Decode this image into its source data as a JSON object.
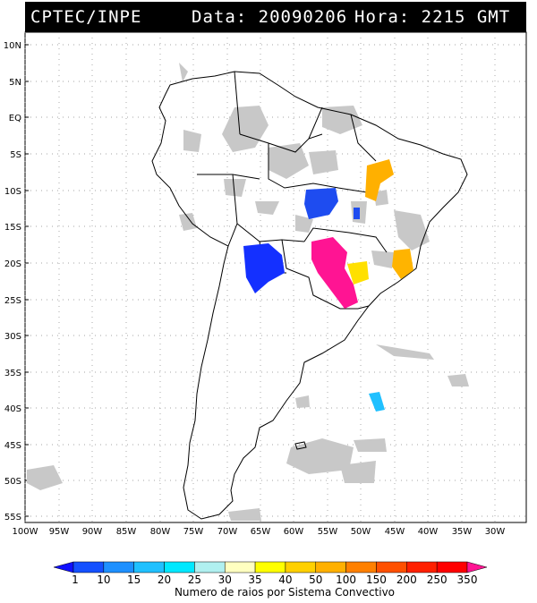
{
  "header": {
    "agency": "CPTEC/INPE",
    "date_label": "Data: 20090206",
    "time_label": "Hora: 2215 GMT"
  },
  "map": {
    "lat_labels": [
      "10N",
      "5N",
      "EQ",
      "5S",
      "10S",
      "15S",
      "20S",
      "25S",
      "30S",
      "35S",
      "40S",
      "45S",
      "50S",
      "55S"
    ],
    "lon_labels": [
      "100W",
      "95W",
      "90W",
      "85W",
      "80W",
      "75W",
      "70W",
      "65W",
      "60W",
      "55W",
      "50W",
      "45W",
      "40W",
      "35W",
      "30W"
    ],
    "cloud_color": "#c8c8c8",
    "coast_color": "#000000"
  },
  "storms": [
    {
      "id": "central-brazil-blue",
      "color": "#1e4cf0",
      "category": "10"
    },
    {
      "id": "mato-grosso-blue-small",
      "color": "#1e4cf0",
      "category": "10"
    },
    {
      "id": "paraguay-bolivia-blue",
      "color": "#1430ff",
      "category": "10"
    },
    {
      "id": "parana-pink",
      "color": "#ff1493",
      "category": "350"
    },
    {
      "id": "minas-yellow",
      "color": "#ffe000",
      "category": "40"
    },
    {
      "id": "bahia-orange",
      "color": "#ffb000",
      "category": "100"
    },
    {
      "id": "east-orange",
      "color": "#ffb400",
      "category": "100"
    },
    {
      "id": "atlantic-cyan",
      "color": "#20c0ff",
      "category": "20"
    }
  ],
  "colorbar": {
    "labels": [
      "1",
      "10",
      "15",
      "20",
      "25",
      "30",
      "35",
      "40",
      "50",
      "100",
      "150",
      "200",
      "250",
      "350"
    ],
    "colors": [
      "#1010ff",
      "#1450ff",
      "#1e90ff",
      "#20c0ff",
      "#00e8ff",
      "#b0f0f0",
      "#ffffc0",
      "#ffff00",
      "#ffd000",
      "#ffb000",
      "#ff8000",
      "#ff5000",
      "#ff2000",
      "#ff0000",
      "#ff1493"
    ],
    "caption": "Numero de raios por Sistema Convectivo"
  }
}
